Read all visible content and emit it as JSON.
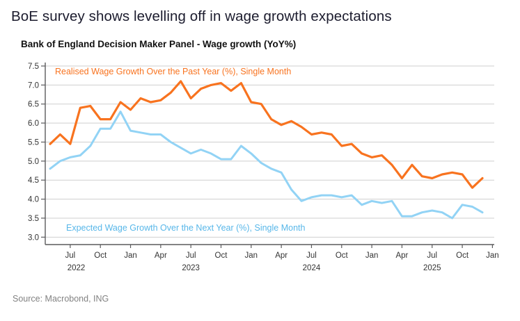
{
  "page": {
    "title": "BoE survey shows levelling off in wage growth expectations",
    "source": "Source: Macrobond, ING"
  },
  "chart_data": {
    "type": "line",
    "title": "Bank of England Decision Maker Panel - Wage growth (YoY%)",
    "x_start": "2022-05",
    "x_end": "2025-12",
    "x_frequency": "monthly",
    "ylim": [
      2.8,
      7.5
    ],
    "yticks": [
      3.0,
      3.5,
      4.0,
      4.5,
      5.0,
      5.5,
      6.0,
      6.5,
      7.0,
      7.5
    ],
    "grid": "horizontal",
    "x_tick_every_months": 3,
    "x_tick_first_index": 2,
    "x_tick_labels": [
      "Jul",
      "Oct",
      "Jan",
      "Apr",
      "Jul",
      "Oct",
      "Jan",
      "Apr",
      "Jul",
      "Oct",
      "Jan",
      "Apr",
      "Jul",
      "Oct",
      "Jan"
    ],
    "year_ticks": [
      {
        "label": "2022",
        "index": 2.6
      },
      {
        "label": "2023",
        "index": 14
      },
      {
        "label": "2024",
        "index": 26
      },
      {
        "label": "2025",
        "index": 38
      }
    ],
    "colors": {
      "realised_line": "#F8731F",
      "realised_label": "#F8731F",
      "expected_line": "#92D3F5",
      "expected_label": "#58B7E9",
      "gridline": "#CFCFCF",
      "axis": "#5A5A5C",
      "tick_text": "#333333"
    },
    "series": [
      {
        "id": "realised",
        "name": "Realised Wage Growth Over the Past Year (%), Single Month",
        "values": [
          5.45,
          5.7,
          5.45,
          6.4,
          6.45,
          6.1,
          6.1,
          6.55,
          6.35,
          6.65,
          6.55,
          6.6,
          6.8,
          7.1,
          6.65,
          6.9,
          7.0,
          7.05,
          6.85,
          7.05,
          6.55,
          6.5,
          6.1,
          5.95,
          6.05,
          5.9,
          5.7,
          5.75,
          5.7,
          5.4,
          5.45,
          5.2,
          5.1,
          5.15,
          4.9,
          4.55,
          4.9,
          4.6,
          4.55,
          4.65,
          4.7,
          4.65,
          4.3,
          4.55
        ]
      },
      {
        "id": "expected",
        "name": "Expected Wage Growth Over the Next Year (%), Single Month",
        "values": [
          4.8,
          5.0,
          5.1,
          5.15,
          5.4,
          5.85,
          5.85,
          6.3,
          5.8,
          5.75,
          5.7,
          5.7,
          5.5,
          5.35,
          5.2,
          5.3,
          5.2,
          5.05,
          5.05,
          5.4,
          5.2,
          4.95,
          4.8,
          4.7,
          4.25,
          3.95,
          4.05,
          4.1,
          4.1,
          4.05,
          4.1,
          3.85,
          3.95,
          3.9,
          3.95,
          3.55,
          3.55,
          3.65,
          3.7,
          3.65,
          3.5,
          3.85,
          3.8,
          3.65
        ]
      }
    ]
  }
}
